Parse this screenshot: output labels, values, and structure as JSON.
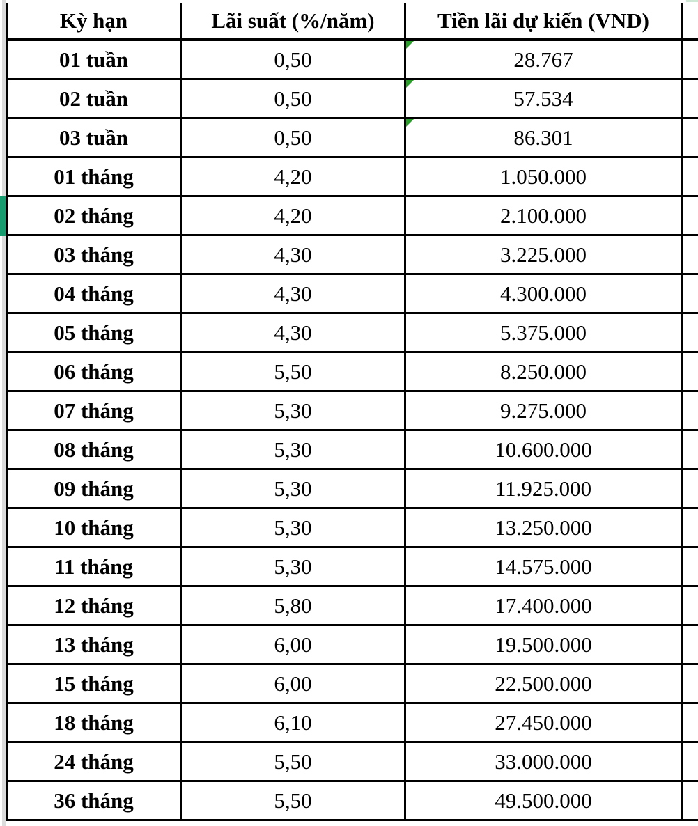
{
  "table": {
    "columns": [
      "Kỳ hạn",
      "Lãi suất (%/năm)",
      "Tiền lãi dự kiến (VND)"
    ],
    "rows": [
      {
        "term": "01 tuần",
        "rate": "0,50",
        "interest": "28.767",
        "flag": true
      },
      {
        "term": "02 tuần",
        "rate": "0,50",
        "interest": "57.534",
        "flag": true
      },
      {
        "term": "03 tuần",
        "rate": "0,50",
        "interest": "86.301",
        "flag": true
      },
      {
        "term": "01 tháng",
        "rate": "4,20",
        "interest": "1.050.000"
      },
      {
        "term": "02 tháng",
        "rate": "4,20",
        "interest": "2.100.000",
        "selected": true
      },
      {
        "term": "03 tháng",
        "rate": "4,30",
        "interest": "3.225.000"
      },
      {
        "term": "04 tháng",
        "rate": "4,30",
        "interest": "4.300.000"
      },
      {
        "term": "05 tháng",
        "rate": "4,30",
        "interest": "5.375.000"
      },
      {
        "term": "06 tháng",
        "rate": "5,50",
        "interest": "8.250.000"
      },
      {
        "term": "07 tháng",
        "rate": "5,30",
        "interest": "9.275.000"
      },
      {
        "term": "08 tháng",
        "rate": "5,30",
        "interest": "10.600.000"
      },
      {
        "term": "09 tháng",
        "rate": "5,30",
        "interest": "11.925.000"
      },
      {
        "term": "10 tháng",
        "rate": "5,30",
        "interest": "13.250.000"
      },
      {
        "term": "11 tháng",
        "rate": "5,30",
        "interest": "14.575.000"
      },
      {
        "term": "12 tháng",
        "rate": "5,80",
        "interest": "17.400.000"
      },
      {
        "term": "13 tháng",
        "rate": "6,00",
        "interest": "19.500.000"
      },
      {
        "term": "15 tháng",
        "rate": "6,00",
        "interest": "22.500.000"
      },
      {
        "term": "18 tháng",
        "rate": "6,10",
        "interest": "27.450.000"
      },
      {
        "term": "24 tháng",
        "rate": "5,50",
        "interest": "33.000.000"
      },
      {
        "term": "36 tháng",
        "rate": "5,50",
        "interest": "49.500.000"
      }
    ]
  },
  "colors": {
    "flag_green": "#28a028",
    "selection_green": "#169c6e",
    "grid": "#000000"
  }
}
